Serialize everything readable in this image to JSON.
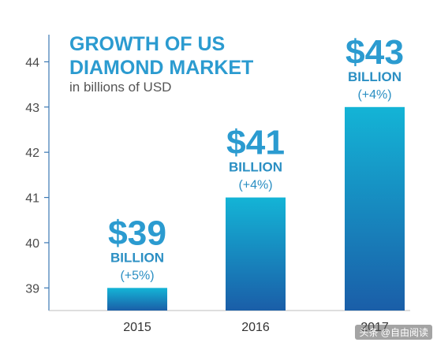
{
  "chart_data": {
    "type": "bar",
    "title_lines": [
      "GROWTH OF US",
      "DIAMOND MARKET"
    ],
    "subtitle": "in billions of USD",
    "categories": [
      "2015",
      "2016",
      "2017"
    ],
    "values": [
      39,
      41,
      43
    ],
    "ylim": [
      38.5,
      44.6
    ],
    "yticks": [
      "39",
      "40",
      "41",
      "42",
      "43",
      "44"
    ],
    "labels": [
      {
        "value": "$39",
        "unit": "BILLION",
        "change": "(+5%)"
      },
      {
        "value": "$41",
        "unit": "BILLION",
        "change": "(+4%)"
      },
      {
        "value": "$43",
        "unit": "BILLION",
        "change": "(+4%)"
      }
    ],
    "grid": false,
    "bar_color_top": "#14b4d6",
    "bar_color_bottom": "#1a5ea8",
    "title_color": "#2b9bd0"
  },
  "watermark": "头条 @自由阅读"
}
